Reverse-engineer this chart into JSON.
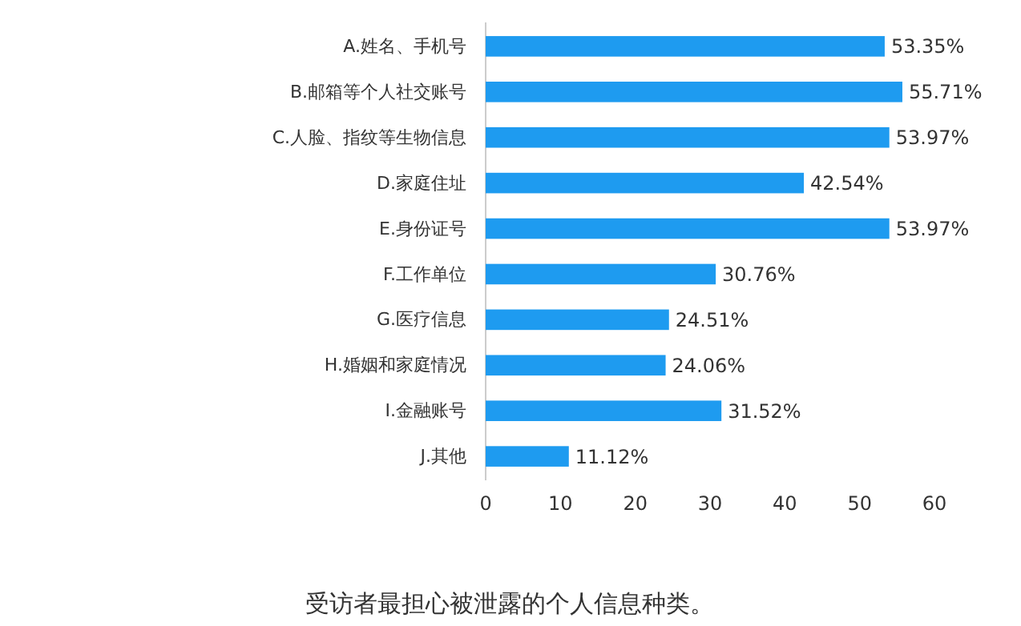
{
  "chart_data": {
    "type": "bar",
    "orientation": "horizontal",
    "title": "受访者最担心被泄露的个人信息种类。",
    "categories": [
      "A.姓名、手机号",
      "B.邮箱等个人社交账号",
      "C.人脸、指纹等生物信息",
      "D.家庭住址",
      "E.身份证号",
      "F.工作单位",
      "G.医疗信息",
      "H.婚姻和家庭情况",
      "I.金融账号",
      "J.其他"
    ],
    "values": [
      53.35,
      55.71,
      53.97,
      42.54,
      53.97,
      30.76,
      24.51,
      24.06,
      31.52,
      11.12
    ],
    "value_labels": [
      "53.35%",
      "55.71%",
      "53.97%",
      "42.54%",
      "53.97%",
      "30.76%",
      "24.51%",
      "24.06%",
      "31.52%",
      "11.12%"
    ],
    "color": "#1e9bf0",
    "xlim": [
      0,
      60
    ],
    "xticks": [
      0,
      10,
      20,
      30,
      40,
      50,
      60
    ],
    "grid": false
  }
}
